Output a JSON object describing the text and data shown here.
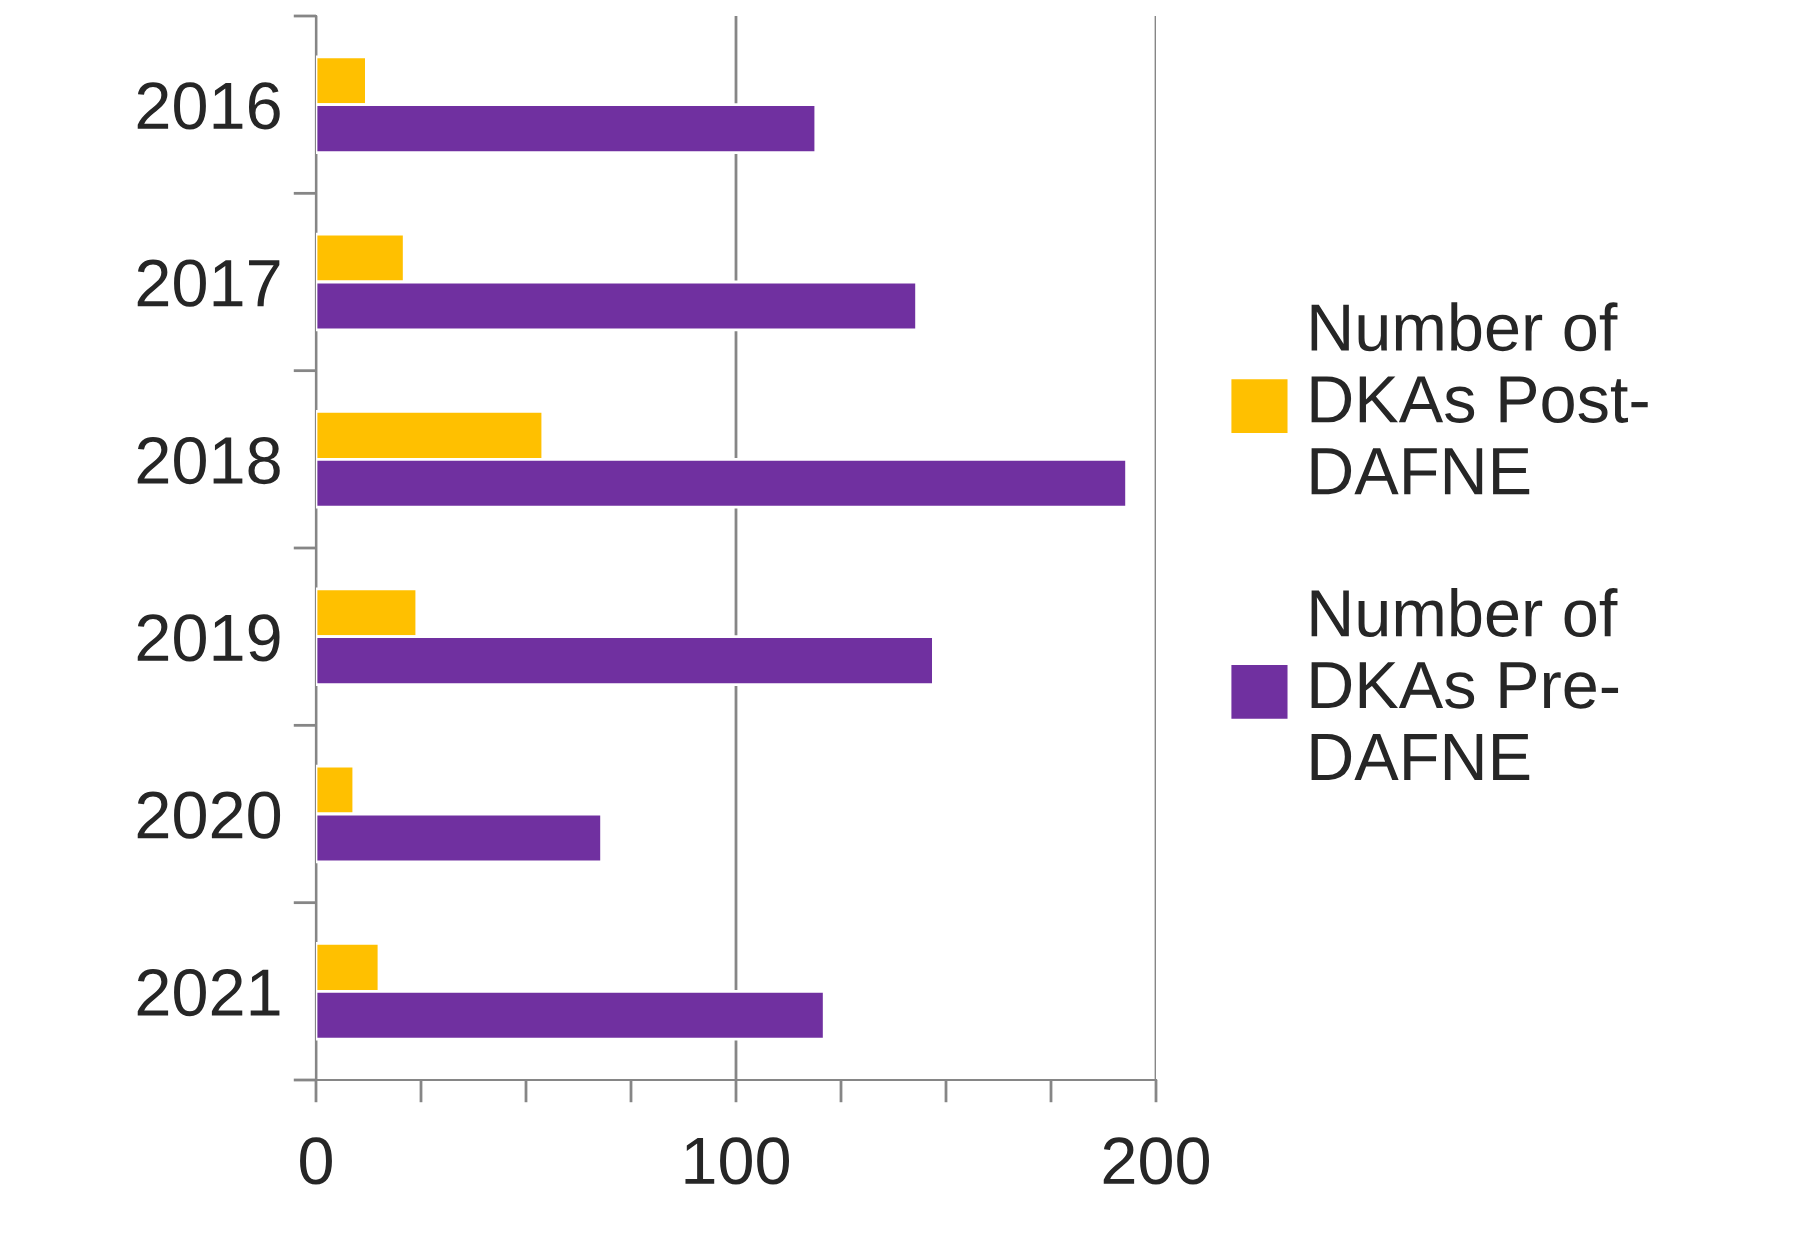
{
  "chart_data": {
    "type": "bar",
    "orientation": "horizontal",
    "categories": [
      "2016",
      "2017",
      "2018",
      "2019",
      "2020",
      "2021"
    ],
    "series": [
      {
        "name": "Number of DKAs Post-DAFNE",
        "color": "#ffc000",
        "values": [
          12,
          21,
          54,
          24,
          9,
          15
        ]
      },
      {
        "name": "Number of DKAs Pre-DAFNE",
        "color": "#7030a0",
        "values": [
          119,
          143,
          193,
          147,
          68,
          121
        ]
      }
    ],
    "xlim": [
      0,
      200
    ],
    "xticks": [
      0,
      {
        "value": 25,
        "label": null
      },
      {
        "value": 50,
        "label": null
      },
      {
        "value": 75,
        "label": null
      },
      100,
      {
        "value": 125,
        "label": null
      },
      {
        "value": 150,
        "label": null
      },
      {
        "value": 175,
        "label": null
      },
      200
    ],
    "grid": "x",
    "legend": "right"
  }
}
